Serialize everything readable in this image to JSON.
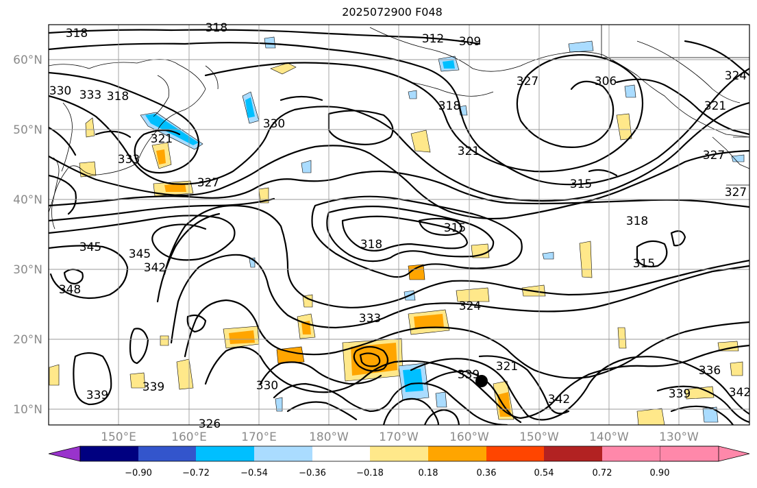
{
  "title": "2025072900 F048",
  "lat_labels": [
    "60°N",
    "50°N",
    "40°N",
    "30°N",
    "20°N",
    "10°N"
  ],
  "lon_labels": [
    "150°E",
    "160°E",
    "170°E",
    "180°W",
    "170°W",
    "160°W",
    "150°W",
    "140°W",
    "130°W"
  ],
  "colorbar": {
    "ticks": [
      "−0.90",
      "−0.72",
      "−0.54",
      "−0.36",
      "−0.18",
      "0.18",
      "0.36",
      "0.54",
      "0.72",
      "0.90"
    ],
    "colors": [
      "#9933cc",
      "#000080",
      "#3355cc",
      "#00bfff",
      "#aadcff",
      "#ffffff",
      "#ffe88a",
      "#ffa500",
      "#ff4500",
      "#b22222",
      "#ff88aa"
    ]
  },
  "contour_labels": [
    "318",
    "318",
    "312",
    "309",
    "330",
    "333",
    "318",
    "306",
    "324",
    "327",
    "318",
    "321",
    "321",
    "330",
    "327",
    "315",
    "321",
    "333",
    "315",
    "318",
    "327",
    "345",
    "345",
    "342",
    "318",
    "315",
    "348",
    "324",
    "333",
    "339",
    "321",
    "330",
    "339",
    "339",
    "342",
    "339",
    "336",
    "342",
    "326",
    "327"
  ],
  "colors": {
    "contour": "#000000",
    "grid": "#9a9a9a",
    "tick": "#8a8a8a",
    "marker": "#000000"
  }
}
